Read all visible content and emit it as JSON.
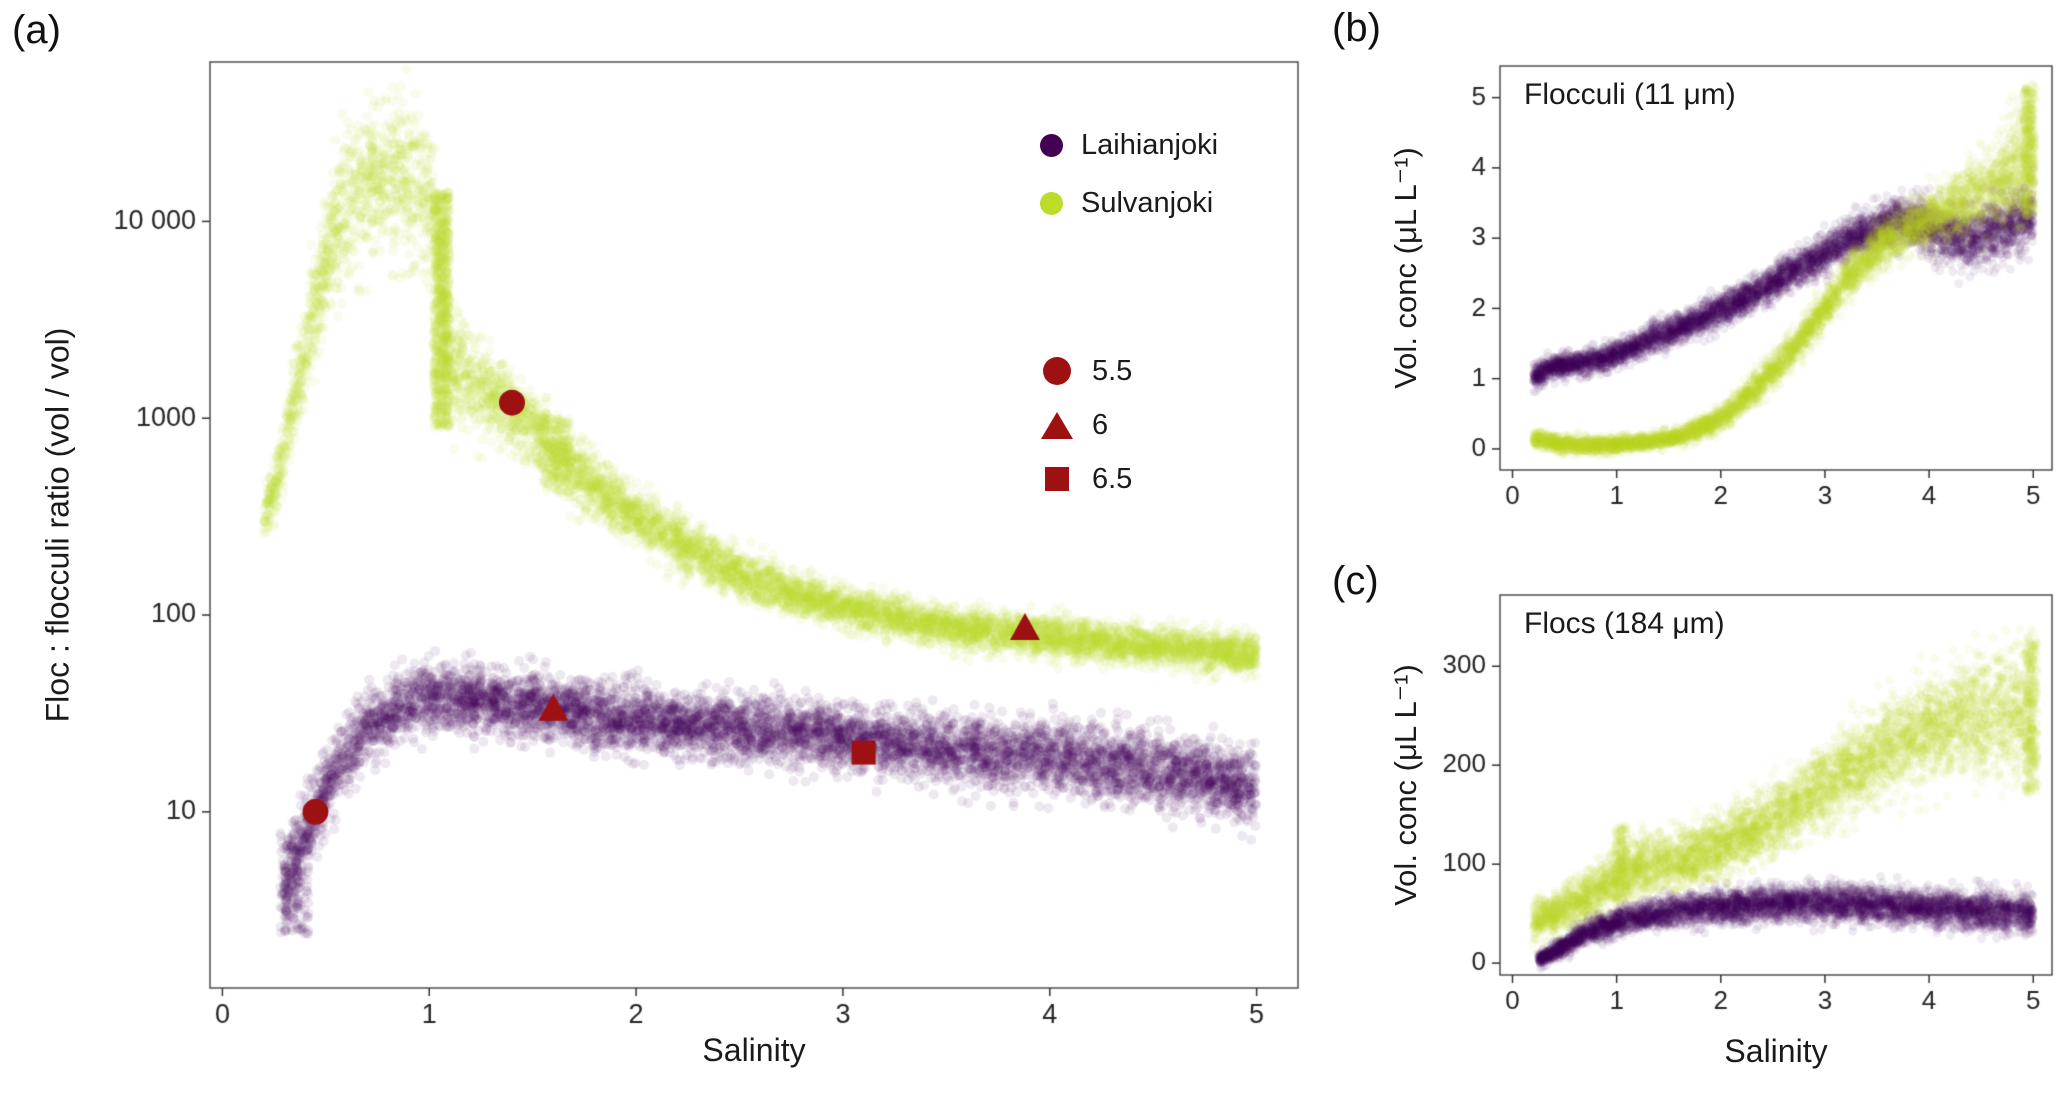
{
  "figure": {
    "panels": [
      {
        "id": "a",
        "label": "(a)"
      },
      {
        "id": "b",
        "label": "(b)"
      },
      {
        "id": "c",
        "label": "(c)"
      }
    ]
  },
  "colors": {
    "laihianjoki": "#440154",
    "sulvanjoki": "#bade28",
    "ph_marker": "#9e1113",
    "axis_text": "#262626",
    "panel_border": "#4d4d4d",
    "tick": "#333333"
  },
  "chart_data": [
    {
      "id": "a",
      "type": "scatter",
      "xlabel": "Salinity",
      "ylabel": "Floc : flocculi ratio (vol / vol)",
      "xlim": [
        -0.06,
        5.2
      ],
      "x_ticks": [
        0,
        1,
        2,
        3,
        4,
        5
      ],
      "x_tick_labels": [
        "0",
        "1",
        "2",
        "3",
        "4",
        "5"
      ],
      "y_scale": "log10",
      "ylim_log10": [
        0.105,
        4.81
      ],
      "y_ticks_log10": [
        1,
        2,
        3,
        4
      ],
      "y_tick_labels": [
        "10",
        "100",
        "1000",
        "10 000"
      ],
      "legend": {
        "series": [
          {
            "label": "Laihianjoki",
            "color": "#440154"
          },
          {
            "label": "Sulvanjoki",
            "color": "#bade28"
          }
        ],
        "ph": {
          "color": "#9e1113",
          "items": [
            {
              "shape": "circle",
              "label": "5.5"
            },
            {
              "shape": "triangle",
              "label": "6"
            },
            {
              "shape": "square",
              "label": "6.5"
            }
          ]
        }
      },
      "series": [
        {
          "name": "Sulvanjoki",
          "color": "#bade28",
          "alpha": 0.09,
          "r": 5,
          "n": 7000,
          "path": [
            [
              0.2,
              2.5
            ],
            [
              0.28,
              2.75
            ],
            [
              0.35,
              3.1
            ],
            [
              0.45,
              3.6
            ],
            [
              0.55,
              3.95
            ],
            [
              0.65,
              4.15
            ],
            [
              0.75,
              4.22
            ],
            [
              0.85,
              4.22
            ],
            [
              0.95,
              4.15
            ],
            [
              1.02,
              4.05
            ],
            [
              1.08,
              3.3
            ],
            [
              1.15,
              3.25
            ],
            [
              1.3,
              3.1
            ],
            [
              1.45,
              3.0
            ],
            [
              1.6,
              2.85
            ],
            [
              1.8,
              2.65
            ],
            [
              2.0,
              2.5
            ],
            [
              2.2,
              2.37
            ],
            [
              2.5,
              2.2
            ],
            [
              2.8,
              2.1
            ],
            [
              3.0,
              2.04
            ],
            [
              3.3,
              1.98
            ],
            [
              3.6,
              1.93
            ],
            [
              4.0,
              1.89
            ],
            [
              4.4,
              1.85
            ],
            [
              4.7,
              1.83
            ],
            [
              5.0,
              1.8
            ]
          ],
          "sd": [
            [
              0.2,
              0.06
            ],
            [
              0.4,
              0.12
            ],
            [
              0.6,
              0.18
            ],
            [
              0.9,
              0.2
            ],
            [
              1.05,
              0.15
            ],
            [
              1.3,
              0.1
            ],
            [
              1.6,
              0.09
            ],
            [
              2.0,
              0.07
            ],
            [
              3.0,
              0.05
            ],
            [
              5.0,
              0.05
            ]
          ],
          "blobs": [
            {
              "x0": 1.02,
              "x1": 1.1,
              "y0": 2.95,
              "y1": 4.15,
              "n": 700
            },
            {
              "x0": 1.55,
              "x1": 1.68,
              "y0": 2.62,
              "y1": 3.0,
              "n": 160
            }
          ]
        },
        {
          "name": "Laihianjoki",
          "color": "#440154",
          "alpha": 0.09,
          "r": 5,
          "n": 7000,
          "path": [
            [
              0.3,
              0.55
            ],
            [
              0.35,
              0.75
            ],
            [
              0.4,
              0.9
            ],
            [
              0.45,
              1.0
            ],
            [
              0.55,
              1.22
            ],
            [
              0.7,
              1.42
            ],
            [
              0.85,
              1.52
            ],
            [
              1.0,
              1.58
            ],
            [
              1.2,
              1.58
            ],
            [
              1.5,
              1.53
            ],
            [
              1.8,
              1.49
            ],
            [
              2.1,
              1.45
            ],
            [
              2.5,
              1.42
            ],
            [
              3.0,
              1.38
            ],
            [
              3.5,
              1.33
            ],
            [
              4.0,
              1.28
            ],
            [
              4.5,
              1.22
            ],
            [
              5.0,
              1.12
            ]
          ],
          "sd": [
            [
              0.3,
              0.1
            ],
            [
              0.5,
              0.09
            ],
            [
              1.0,
              0.08
            ],
            [
              2.0,
              0.08
            ],
            [
              3.0,
              0.08
            ],
            [
              4.0,
              0.09
            ],
            [
              5.0,
              0.09
            ]
          ],
          "blobs": [
            {
              "x0": 0.28,
              "x1": 0.42,
              "y0": 0.38,
              "y1": 0.9,
              "n": 150
            }
          ]
        }
      ],
      "markers": [
        {
          "shape": "circle",
          "x": 0.45,
          "y": 10
        },
        {
          "shape": "triangle",
          "x": 1.6,
          "y": 33
        },
        {
          "shape": "square",
          "x": 3.1,
          "y": 20
        },
        {
          "shape": "circle",
          "x": 1.4,
          "y": 1200
        },
        {
          "shape": "triangle",
          "x": 3.88,
          "y": 85
        }
      ]
    },
    {
      "id": "b",
      "type": "scatter",
      "annotation": "Flocculi (11 μm)",
      "ylabel": "Vol. conc (μL L⁻¹)",
      "xlim": [
        -0.12,
        5.18
      ],
      "x_ticks": [
        0,
        1,
        2,
        3,
        4,
        5
      ],
      "x_tick_labels": [
        "0",
        "1",
        "2",
        "3",
        "4",
        "5"
      ],
      "y_scale": "linear",
      "ylim": [
        -0.3,
        5.45
      ],
      "y_ticks": [
        0,
        1,
        2,
        3,
        4,
        5
      ],
      "y_tick_labels": [
        "0",
        "1",
        "2",
        "3",
        "4",
        "5"
      ],
      "series": [
        {
          "name": "Laihianjoki",
          "color": "#440154",
          "alpha": 0.08,
          "r": 4.5,
          "n": 5200,
          "path": [
            [
              0.2,
              1.02
            ],
            [
              0.35,
              1.15
            ],
            [
              0.5,
              1.2
            ],
            [
              0.7,
              1.22
            ],
            [
              0.9,
              1.3
            ],
            [
              1.1,
              1.42
            ],
            [
              1.4,
              1.6
            ],
            [
              1.7,
              1.78
            ],
            [
              2.0,
              1.98
            ],
            [
              2.3,
              2.2
            ],
            [
              2.6,
              2.45
            ],
            [
              2.9,
              2.7
            ],
            [
              3.2,
              2.95
            ],
            [
              3.5,
              3.15
            ],
            [
              3.7,
              3.25
            ],
            [
              3.9,
              3.2
            ],
            [
              4.1,
              3.05
            ],
            [
              4.3,
              3.0
            ],
            [
              4.6,
              3.1
            ],
            [
              4.8,
              3.2
            ],
            [
              5.0,
              3.3
            ]
          ],
          "sd": [
            [
              0.2,
              0.07
            ],
            [
              1.0,
              0.09
            ],
            [
              2.0,
              0.11
            ],
            [
              3.0,
              0.13
            ],
            [
              3.6,
              0.15
            ],
            [
              4.2,
              0.2
            ],
            [
              5.0,
              0.25
            ]
          ],
          "blobs": []
        },
        {
          "name": "Sulvanjoki",
          "color": "#bade28",
          "alpha": 0.08,
          "r": 4.5,
          "n": 5200,
          "path": [
            [
              0.2,
              0.15
            ],
            [
              0.4,
              0.08
            ],
            [
              0.7,
              0.05
            ],
            [
              1.0,
              0.06
            ],
            [
              1.3,
              0.1
            ],
            [
              1.6,
              0.18
            ],
            [
              1.9,
              0.35
            ],
            [
              2.1,
              0.55
            ],
            [
              2.4,
              0.95
            ],
            [
              2.7,
              1.45
            ],
            [
              3.0,
              2.0
            ],
            [
              3.2,
              2.4
            ],
            [
              3.5,
              2.85
            ],
            [
              3.8,
              3.15
            ],
            [
              4.1,
              3.35
            ],
            [
              4.4,
              3.55
            ],
            [
              4.7,
              3.8
            ],
            [
              4.85,
              4.0
            ],
            [
              5.0,
              4.3
            ]
          ],
          "sd": [
            [
              0.2,
              0.06
            ],
            [
              1.5,
              0.05
            ],
            [
              2.5,
              0.12
            ],
            [
              3.5,
              0.15
            ],
            [
              4.2,
              0.2
            ],
            [
              4.7,
              0.3
            ],
            [
              5.0,
              0.45
            ]
          ],
          "blobs": [
            {
              "x0": 4.9,
              "x1": 5.02,
              "y0": 3.3,
              "y1": 5.15,
              "n": 300
            }
          ]
        }
      ],
      "markers": []
    },
    {
      "id": "c",
      "type": "scatter",
      "annotation": "Flocs (184 μm)",
      "xlabel": "Salinity",
      "ylabel": "Vol. conc (μL L⁻¹)",
      "xlim": [
        -0.12,
        5.18
      ],
      "x_ticks": [
        0,
        1,
        2,
        3,
        4,
        5
      ],
      "x_tick_labels": [
        "0",
        "1",
        "2",
        "3",
        "4",
        "5"
      ],
      "y_scale": "linear",
      "ylim": [
        -12,
        372
      ],
      "y_ticks": [
        0,
        100,
        200,
        300
      ],
      "y_tick_labels": [
        "0",
        "100",
        "200",
        "300"
      ],
      "series": [
        {
          "name": "Sulvanjoki",
          "color": "#bade28",
          "alpha": 0.08,
          "r": 4.5,
          "n": 5200,
          "path": [
            [
              0.2,
              42
            ],
            [
              0.4,
              50
            ],
            [
              0.6,
              60
            ],
            [
              0.8,
              72
            ],
            [
              1.0,
              88
            ],
            [
              1.2,
              97
            ],
            [
              1.4,
              100
            ],
            [
              1.6,
              104
            ],
            [
              1.8,
              110
            ],
            [
              2.0,
              118
            ],
            [
              2.3,
              132
            ],
            [
              2.6,
              150
            ],
            [
              3.0,
              178
            ],
            [
              3.4,
              205
            ],
            [
              3.8,
              228
            ],
            [
              4.2,
              245
            ],
            [
              4.6,
              252
            ],
            [
              5.0,
              255
            ]
          ],
          "sd": [
            [
              0.2,
              10
            ],
            [
              0.8,
              13
            ],
            [
              1.5,
              14
            ],
            [
              2.5,
              18
            ],
            [
              3.5,
              22
            ],
            [
              4.5,
              28
            ],
            [
              5.0,
              32
            ]
          ],
          "blobs": [
            {
              "x0": 0.98,
              "x1": 1.1,
              "y0": 60,
              "y1": 140,
              "n": 150
            },
            {
              "x0": 4.92,
              "x1": 5.04,
              "y0": 170,
              "y1": 330,
              "n": 250
            }
          ]
        },
        {
          "name": "Laihianjoki",
          "color": "#440154",
          "alpha": 0.08,
          "r": 4.5,
          "n": 5200,
          "path": [
            [
              0.25,
              4
            ],
            [
              0.35,
              8
            ],
            [
              0.5,
              18
            ],
            [
              0.7,
              30
            ],
            [
              0.9,
              38
            ],
            [
              1.1,
              44
            ],
            [
              1.4,
              50
            ],
            [
              1.7,
              54
            ],
            [
              2.0,
              57
            ],
            [
              2.5,
              60
            ],
            [
              3.0,
              61
            ],
            [
              3.5,
              59
            ],
            [
              4.0,
              56
            ],
            [
              4.5,
              53
            ],
            [
              5.0,
              49
            ]
          ],
          "sd": [
            [
              0.25,
              3
            ],
            [
              0.5,
              5
            ],
            [
              1.0,
              7
            ],
            [
              2.0,
              8
            ],
            [
              3.0,
              9
            ],
            [
              4.0,
              9
            ],
            [
              5.0,
              10
            ]
          ],
          "blobs": []
        }
      ],
      "markers": []
    }
  ]
}
